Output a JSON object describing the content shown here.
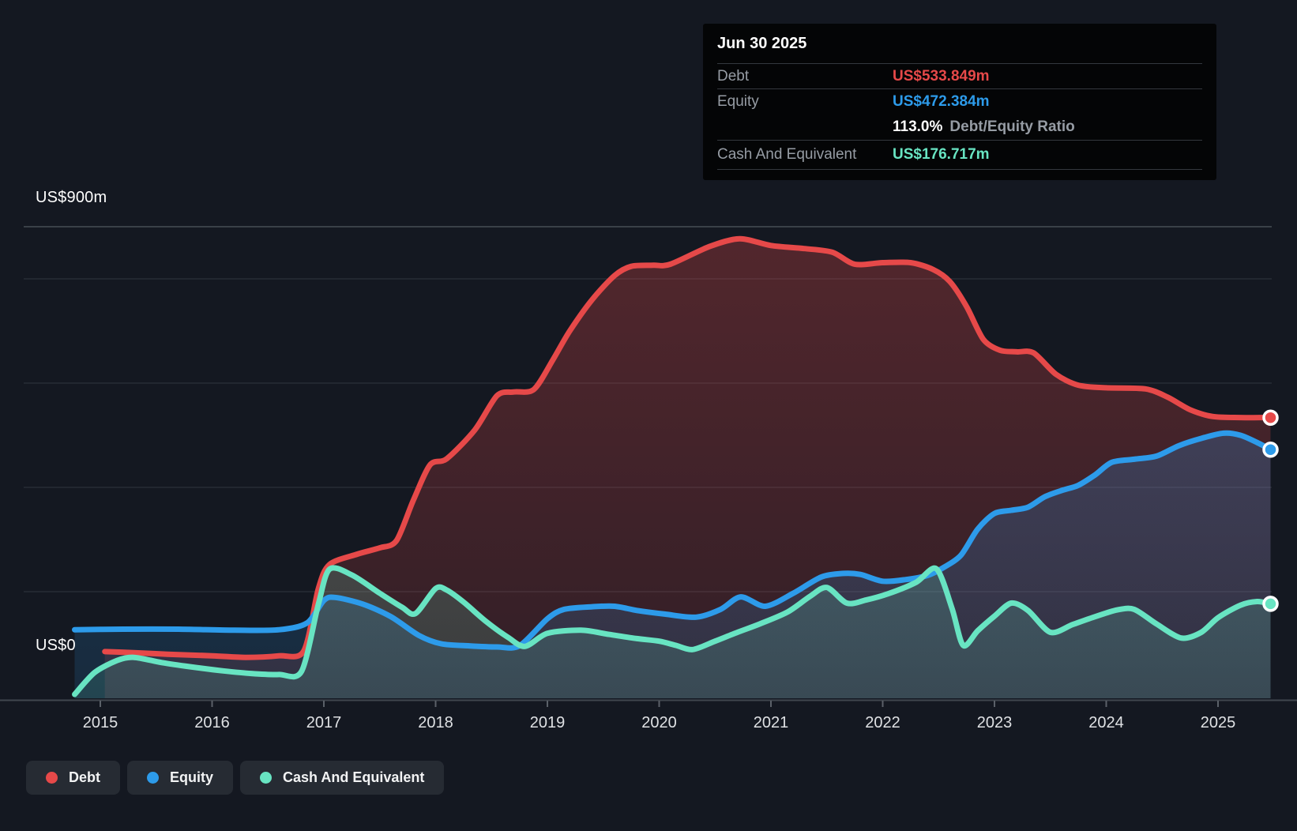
{
  "tooltip": {
    "date": "Jun 30 2025",
    "debt_label": "Debt",
    "debt_value": "US$533.849m",
    "equity_label": "Equity",
    "equity_value": "US$472.384m",
    "ratio_value": "113.0%",
    "ratio_label": "Debt/Equity Ratio",
    "cash_label": "Cash And Equivalent",
    "cash_value": "US$176.717m"
  },
  "axis": {
    "y_max_label": "US$900m",
    "y_min_label": "US$0",
    "years": [
      "2015",
      "2016",
      "2017",
      "2018",
      "2019",
      "2020",
      "2021",
      "2022",
      "2023",
      "2024",
      "2025"
    ]
  },
  "legend": {
    "items": [
      {
        "label": "Debt"
      },
      {
        "label": "Equity"
      },
      {
        "label": "Cash And Equivalent"
      }
    ]
  },
  "colors": {
    "debt": "#e64949",
    "equity": "#2d9bea",
    "cash": "#68e4c2",
    "background": "#141821",
    "tooltip_bg": "#040506",
    "grid": "#2f3640",
    "grid_top": "#474d56",
    "axis_line": "#40464e",
    "tick": "#5b6169",
    "x_label": "#dfe1e4",
    "muted_text": "#969ca4"
  },
  "chart_data": {
    "type": "area",
    "unit": "US$m",
    "x_range": [
      2014.77,
      2025.5
    ],
    "ylim": [
      0,
      900
    ],
    "gridline_values": [
      900,
      800,
      600,
      400,
      200
    ],
    "legend_position": "bottom-left",
    "series": [
      {
        "name": "Debt",
        "color": "#e64949",
        "points": [
          [
            2015.04,
            85
          ],
          [
            2015.3,
            83
          ],
          [
            2015.6,
            80
          ],
          [
            2016.0,
            77
          ],
          [
            2016.3,
            74
          ],
          [
            2016.6,
            77
          ],
          [
            2016.82,
            86
          ],
          [
            2016.95,
            205
          ],
          [
            2017.05,
            252
          ],
          [
            2017.3,
            272
          ],
          [
            2017.5,
            284
          ],
          [
            2017.65,
            298
          ],
          [
            2017.8,
            375
          ],
          [
            2017.95,
            443
          ],
          [
            2018.1,
            455
          ],
          [
            2018.35,
            510
          ],
          [
            2018.55,
            576
          ],
          [
            2018.7,
            583
          ],
          [
            2018.88,
            588
          ],
          [
            2019.05,
            645
          ],
          [
            2019.2,
            700
          ],
          [
            2019.4,
            760
          ],
          [
            2019.6,
            806
          ],
          [
            2019.75,
            824
          ],
          [
            2019.95,
            826
          ],
          [
            2020.1,
            828
          ],
          [
            2020.45,
            862
          ],
          [
            2020.72,
            877
          ],
          [
            2021.0,
            864
          ],
          [
            2021.3,
            858
          ],
          [
            2021.55,
            851
          ],
          [
            2021.75,
            828
          ],
          [
            2022.0,
            831
          ],
          [
            2022.25,
            831
          ],
          [
            2022.45,
            818
          ],
          [
            2022.6,
            795
          ],
          [
            2022.75,
            747
          ],
          [
            2022.9,
            684
          ],
          [
            2023.05,
            663
          ],
          [
            2023.2,
            660
          ],
          [
            2023.35,
            658
          ],
          [
            2023.55,
            617
          ],
          [
            2023.75,
            596
          ],
          [
            2024.0,
            591
          ],
          [
            2024.35,
            589
          ],
          [
            2024.55,
            573
          ],
          [
            2024.75,
            549
          ],
          [
            2024.95,
            536
          ],
          [
            2025.2,
            534
          ],
          [
            2025.47,
            533.849
          ]
        ]
      },
      {
        "name": "Equity",
        "color": "#2d9bea",
        "points": [
          [
            2014.77,
            127
          ],
          [
            2015.2,
            128
          ],
          [
            2015.7,
            128
          ],
          [
            2016.2,
            126
          ],
          [
            2016.6,
            127
          ],
          [
            2016.85,
            140
          ],
          [
            2017.0,
            183
          ],
          [
            2017.1,
            189
          ],
          [
            2017.35,
            176
          ],
          [
            2017.6,
            152
          ],
          [
            2017.85,
            116
          ],
          [
            2018.05,
            100
          ],
          [
            2018.3,
            96
          ],
          [
            2018.55,
            94
          ],
          [
            2018.75,
            96
          ],
          [
            2019.0,
            148
          ],
          [
            2019.15,
            166
          ],
          [
            2019.4,
            171
          ],
          [
            2019.6,
            172
          ],
          [
            2019.8,
            164
          ],
          [
            2020.05,
            157
          ],
          [
            2020.33,
            151
          ],
          [
            2020.55,
            166
          ],
          [
            2020.73,
            190
          ],
          [
            2020.95,
            172
          ],
          [
            2021.2,
            197
          ],
          [
            2021.45,
            228
          ],
          [
            2021.65,
            235
          ],
          [
            2021.8,
            233
          ],
          [
            2022.0,
            220
          ],
          [
            2022.2,
            223
          ],
          [
            2022.4,
            231
          ],
          [
            2022.55,
            247
          ],
          [
            2022.7,
            270
          ],
          [
            2022.85,
            320
          ],
          [
            2023.0,
            350
          ],
          [
            2023.15,
            356
          ],
          [
            2023.3,
            362
          ],
          [
            2023.45,
            382
          ],
          [
            2023.6,
            394
          ],
          [
            2023.75,
            404
          ],
          [
            2023.9,
            424
          ],
          [
            2024.05,
            448
          ],
          [
            2024.25,
            454
          ],
          [
            2024.45,
            460
          ],
          [
            2024.65,
            480
          ],
          [
            2024.85,
            494
          ],
          [
            2025.05,
            504
          ],
          [
            2025.2,
            500
          ],
          [
            2025.35,
            486
          ],
          [
            2025.47,
            472.384
          ]
        ]
      },
      {
        "name": "Cash And Equivalent",
        "color": "#68e4c2",
        "points": [
          [
            2014.77,
            3
          ],
          [
            2014.95,
            45
          ],
          [
            2015.15,
            68
          ],
          [
            2015.3,
            74
          ],
          [
            2015.55,
            64
          ],
          [
            2015.8,
            56
          ],
          [
            2016.1,
            48
          ],
          [
            2016.35,
            43
          ],
          [
            2016.6,
            41
          ],
          [
            2016.8,
            47
          ],
          [
            2016.95,
            175
          ],
          [
            2017.05,
            243
          ],
          [
            2017.25,
            232
          ],
          [
            2017.5,
            197
          ],
          [
            2017.7,
            170
          ],
          [
            2017.82,
            158
          ],
          [
            2018.0,
            206
          ],
          [
            2018.1,
            203
          ],
          [
            2018.25,
            180
          ],
          [
            2018.45,
            143
          ],
          [
            2018.65,
            112
          ],
          [
            2018.8,
            95
          ],
          [
            2019.0,
            120
          ],
          [
            2019.3,
            126
          ],
          [
            2019.55,
            118
          ],
          [
            2019.8,
            110
          ],
          [
            2020.0,
            105
          ],
          [
            2020.15,
            97
          ],
          [
            2020.3,
            89
          ],
          [
            2020.5,
            105
          ],
          [
            2020.7,
            122
          ],
          [
            2020.9,
            138
          ],
          [
            2021.15,
            161
          ],
          [
            2021.35,
            191
          ],
          [
            2021.5,
            208
          ],
          [
            2021.68,
            178
          ],
          [
            2021.85,
            184
          ],
          [
            2022.05,
            196
          ],
          [
            2022.3,
            218
          ],
          [
            2022.48,
            244
          ],
          [
            2022.62,
            168
          ],
          [
            2022.72,
            97
          ],
          [
            2022.85,
            125
          ],
          [
            2023.0,
            153
          ],
          [
            2023.15,
            178
          ],
          [
            2023.3,
            164
          ],
          [
            2023.5,
            122
          ],
          [
            2023.7,
            137
          ],
          [
            2023.9,
            152
          ],
          [
            2024.1,
            165
          ],
          [
            2024.25,
            166
          ],
          [
            2024.45,
            138
          ],
          [
            2024.67,
            111
          ],
          [
            2024.85,
            122
          ],
          [
            2025.0,
            150
          ],
          [
            2025.2,
            174
          ],
          [
            2025.35,
            181
          ],
          [
            2025.47,
            176.717
          ]
        ]
      }
    ]
  }
}
